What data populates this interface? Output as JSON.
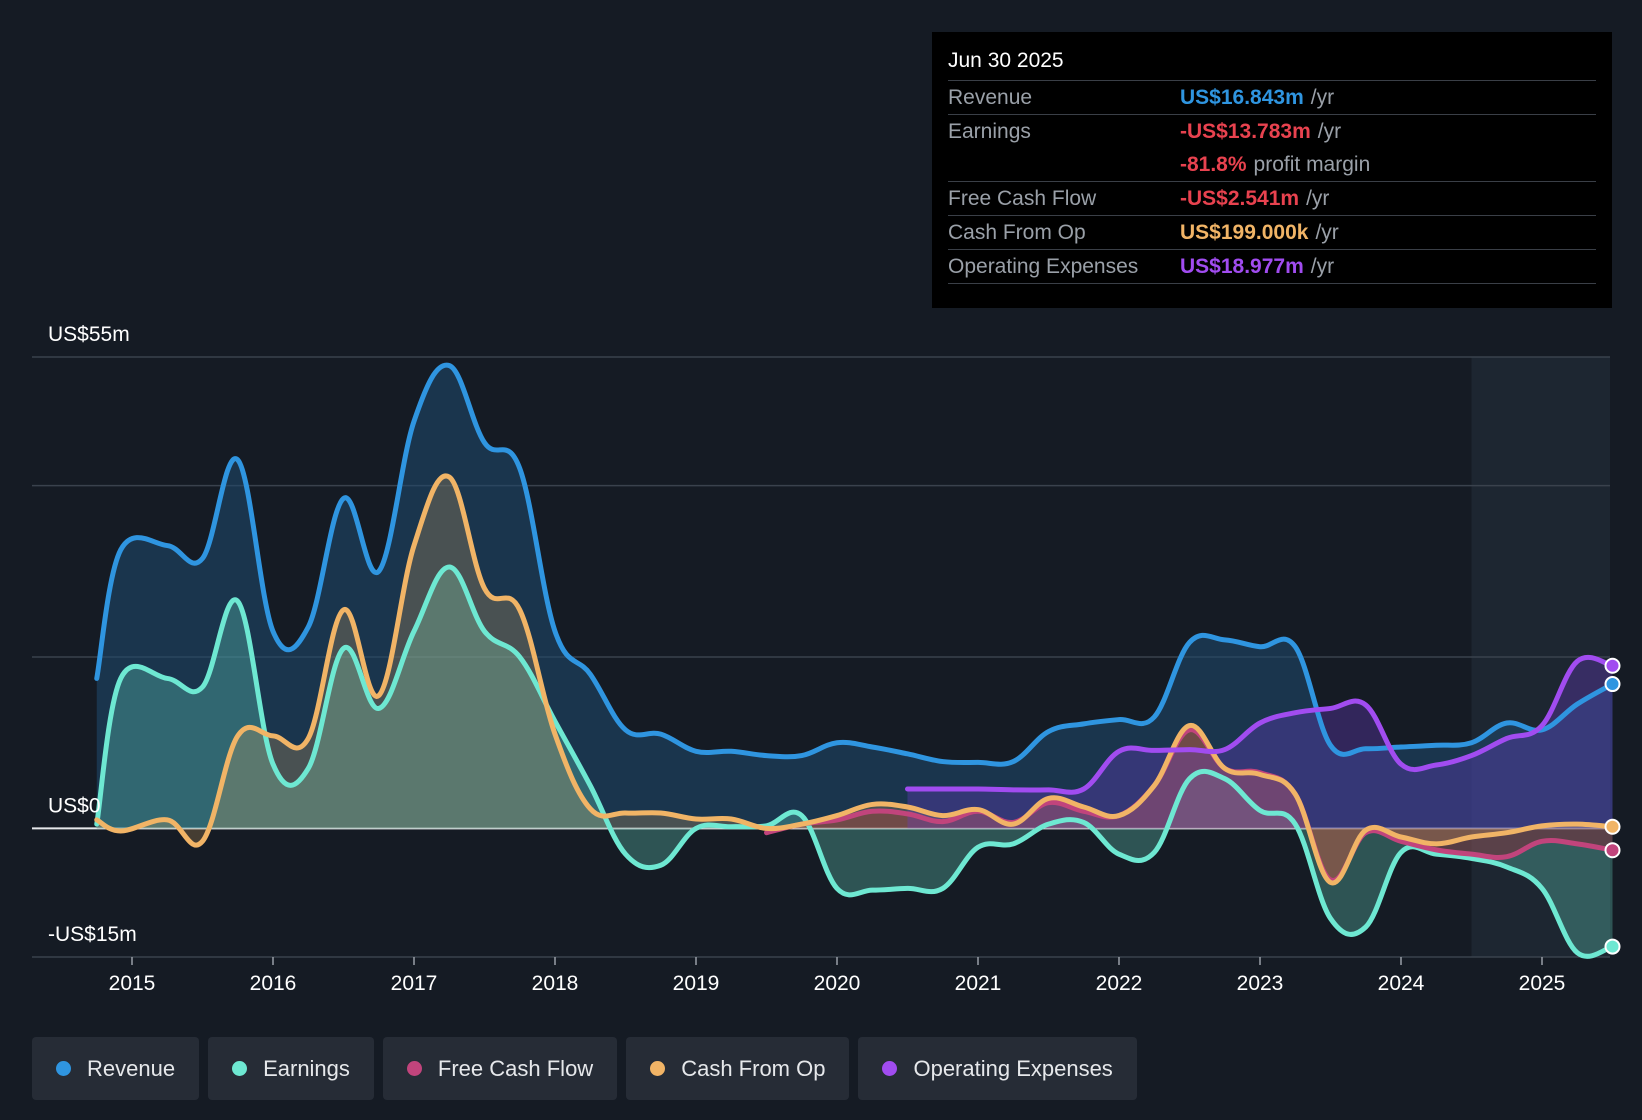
{
  "tooltip": {
    "date": "Jun 30 2025",
    "rows": [
      {
        "label": "Revenue",
        "value": "US$16.843m",
        "unit": "/yr",
        "color": "#2f95e0"
      },
      {
        "label": "Earnings",
        "value": "-US$13.783m",
        "unit": "/yr",
        "color": "#e8424f"
      },
      {
        "label": "",
        "value": "-81.8%",
        "unit": "profit margin",
        "color": "#e8424f"
      },
      {
        "label": "Free Cash Flow",
        "value": "-US$2.541m",
        "unit": "/yr",
        "color": "#e8424f"
      },
      {
        "label": "Cash From Op",
        "value": "US$199.000k",
        "unit": "/yr",
        "color": "#f1b466"
      },
      {
        "label": "Operating Expenses",
        "value": "US$18.977m",
        "unit": "/yr",
        "color": "#a14cf0"
      }
    ]
  },
  "legend": [
    {
      "label": "Revenue",
      "color": "#2f95e0"
    },
    {
      "label": "Earnings",
      "color": "#6ee8d2"
    },
    {
      "label": "Free Cash Flow",
      "color": "#c1447c"
    },
    {
      "label": "Cash From Op",
      "color": "#f1b466"
    },
    {
      "label": "Operating Expenses",
      "color": "#a14cf0"
    }
  ],
  "chart_data": {
    "type": "area",
    "y_top_label": "US$55m",
    "y_zero_label": "US$0",
    "y_bottom_label": "-US$15m",
    "ylim": [
      -15,
      55
    ],
    "xlim": [
      2014.75,
      2025.5
    ],
    "x_ticks": [
      2015,
      2016,
      2017,
      2018,
      2019,
      2020,
      2021,
      2022,
      2023,
      2024,
      2025
    ],
    "x_tick_labels": [
      "2015",
      "2016",
      "2017",
      "2018",
      "2019",
      "2020",
      "2021",
      "2022",
      "2023",
      "2024",
      "2025"
    ],
    "grid": true,
    "forecast_start": 2024.5,
    "series": [
      {
        "name": "Revenue",
        "color": "#2f95e0",
        "points": [
          [
            2014.75,
            17.5
          ],
          [
            2014.92,
            32.5
          ],
          [
            2015.25,
            33
          ],
          [
            2015.5,
            31.5
          ],
          [
            2015.75,
            43
          ],
          [
            2016.0,
            23
          ],
          [
            2016.25,
            23.5
          ],
          [
            2016.5,
            38.5
          ],
          [
            2016.75,
            30
          ],
          [
            2017.0,
            47.5
          ],
          [
            2017.25,
            54
          ],
          [
            2017.5,
            45
          ],
          [
            2017.75,
            42
          ],
          [
            2018.0,
            23
          ],
          [
            2018.25,
            18
          ],
          [
            2018.5,
            11.5
          ],
          [
            2018.75,
            11
          ],
          [
            2019.0,
            9
          ],
          [
            2019.25,
            9
          ],
          [
            2019.5,
            8.5
          ],
          [
            2019.75,
            8.5
          ],
          [
            2020.0,
            10
          ],
          [
            2020.25,
            9.5
          ],
          [
            2020.5,
            8.7
          ],
          [
            2020.75,
            7.8
          ],
          [
            2021.0,
            7.7
          ],
          [
            2021.25,
            7.8
          ],
          [
            2021.5,
            11.3
          ],
          [
            2021.75,
            12.2
          ],
          [
            2022.0,
            12.7
          ],
          [
            2022.25,
            13
          ],
          [
            2022.5,
            21.7
          ],
          [
            2022.75,
            22
          ],
          [
            2023.0,
            21.2
          ],
          [
            2023.25,
            21.2
          ],
          [
            2023.5,
            9.7
          ],
          [
            2023.75,
            9.3
          ],
          [
            2024.0,
            9.5
          ],
          [
            2024.25,
            9.7
          ],
          [
            2024.5,
            10
          ],
          [
            2024.75,
            12.3
          ],
          [
            2025.0,
            11.5
          ],
          [
            2025.25,
            14.5
          ],
          [
            2025.5,
            16.843
          ]
        ]
      },
      {
        "name": "Earnings",
        "color": "#6ee8d2",
        "points": [
          [
            2014.75,
            0.5
          ],
          [
            2014.92,
            17.5
          ],
          [
            2015.25,
            17.5
          ],
          [
            2015.5,
            16.5
          ],
          [
            2015.75,
            26.5
          ],
          [
            2016.0,
            7.5
          ],
          [
            2016.25,
            7
          ],
          [
            2016.5,
            21
          ],
          [
            2016.75,
            14
          ],
          [
            2017.0,
            23
          ],
          [
            2017.25,
            30.5
          ],
          [
            2017.5,
            23
          ],
          [
            2017.75,
            20
          ],
          [
            2018.0,
            12.5
          ],
          [
            2018.25,
            5
          ],
          [
            2018.5,
            -3
          ],
          [
            2018.75,
            -4.3
          ],
          [
            2019.0,
            0
          ],
          [
            2019.25,
            0.2
          ],
          [
            2019.5,
            0.3
          ],
          [
            2019.75,
            1.5
          ],
          [
            2020.0,
            -7
          ],
          [
            2020.25,
            -7.2
          ],
          [
            2020.5,
            -7
          ],
          [
            2020.75,
            -7
          ],
          [
            2021.0,
            -2.2
          ],
          [
            2021.25,
            -1.8
          ],
          [
            2021.5,
            0.5
          ],
          [
            2021.75,
            0.7
          ],
          [
            2022.0,
            -3
          ],
          [
            2022.25,
            -2.8
          ],
          [
            2022.5,
            5.8
          ],
          [
            2022.75,
            5.8
          ],
          [
            2023.0,
            2.1
          ],
          [
            2023.25,
            0.5
          ],
          [
            2023.5,
            -10.5
          ],
          [
            2023.75,
            -11.5
          ],
          [
            2024.0,
            -2.8
          ],
          [
            2024.25,
            -3
          ],
          [
            2024.5,
            -3.5
          ],
          [
            2024.75,
            -4.5
          ],
          [
            2025.0,
            -7
          ],
          [
            2025.25,
            -14.5
          ],
          [
            2025.5,
            -13.783
          ]
        ]
      },
      {
        "name": "Free Cash Flow",
        "color": "#c1447c",
        "points": [
          [
            2019.5,
            -0.5
          ],
          [
            2019.75,
            0.5
          ],
          [
            2020.0,
            1
          ],
          [
            2020.25,
            2
          ],
          [
            2020.5,
            1.7
          ],
          [
            2020.75,
            0.8
          ],
          [
            2021.0,
            2
          ],
          [
            2021.25,
            0.7
          ],
          [
            2021.5,
            3
          ],
          [
            2021.75,
            2
          ],
          [
            2022.0,
            1.5
          ],
          [
            2022.25,
            5
          ],
          [
            2022.5,
            11.5
          ],
          [
            2022.75,
            7
          ],
          [
            2023.0,
            6.5
          ],
          [
            2023.25,
            4
          ],
          [
            2023.5,
            -6
          ],
          [
            2023.75,
            -0.5
          ],
          [
            2024.0,
            -1.5
          ],
          [
            2024.25,
            -2.5
          ],
          [
            2024.5,
            -3
          ],
          [
            2024.75,
            -3.3
          ],
          [
            2025.0,
            -1.5
          ],
          [
            2025.25,
            -1.8
          ],
          [
            2025.5,
            -2.541
          ]
        ]
      },
      {
        "name": "Cash From Op",
        "color": "#f1b466",
        "points": [
          [
            2014.75,
            1
          ],
          [
            2014.92,
            -0.3
          ],
          [
            2015.25,
            1
          ],
          [
            2015.5,
            -1.5
          ],
          [
            2015.75,
            10.8
          ],
          [
            2016.0,
            10.8
          ],
          [
            2016.25,
            10.5
          ],
          [
            2016.5,
            25.5
          ],
          [
            2016.75,
            15.5
          ],
          [
            2017.0,
            33
          ],
          [
            2017.25,
            41
          ],
          [
            2017.5,
            28
          ],
          [
            2017.75,
            25.5
          ],
          [
            2018.0,
            11
          ],
          [
            2018.25,
            2.3
          ],
          [
            2018.5,
            1.8
          ],
          [
            2018.75,
            1.8
          ],
          [
            2019.0,
            1.1
          ],
          [
            2019.25,
            1.1
          ],
          [
            2019.5,
            0
          ],
          [
            2019.75,
            0.5
          ],
          [
            2020.0,
            1.5
          ],
          [
            2020.25,
            2.8
          ],
          [
            2020.5,
            2.5
          ],
          [
            2020.75,
            1.5
          ],
          [
            2021.0,
            2.2
          ],
          [
            2021.25,
            0.5
          ],
          [
            2021.5,
            3.5
          ],
          [
            2021.75,
            2.5
          ],
          [
            2022.0,
            1.5
          ],
          [
            2022.25,
            5
          ],
          [
            2022.5,
            12
          ],
          [
            2022.75,
            7
          ],
          [
            2023.0,
            6.3
          ],
          [
            2023.25,
            4
          ],
          [
            2023.5,
            -6.3
          ],
          [
            2023.75,
            -0.2
          ],
          [
            2024.0,
            -1
          ],
          [
            2024.25,
            -1.8
          ],
          [
            2024.5,
            -1
          ],
          [
            2024.75,
            -0.5
          ],
          [
            2025.0,
            0.3
          ],
          [
            2025.25,
            0.5
          ],
          [
            2025.5,
            0.199
          ]
        ]
      },
      {
        "name": "Operating Expenses",
        "color": "#a14cf0",
        "points": [
          [
            2020.5,
            4.6
          ],
          [
            2020.75,
            4.6
          ],
          [
            2021.0,
            4.6
          ],
          [
            2021.25,
            4.5
          ],
          [
            2021.5,
            4.5
          ],
          [
            2021.75,
            4.6
          ],
          [
            2022.0,
            9
          ],
          [
            2022.25,
            9.1
          ],
          [
            2022.5,
            9.2
          ],
          [
            2022.75,
            9.2
          ],
          [
            2023.0,
            12.3
          ],
          [
            2023.25,
            13.5
          ],
          [
            2023.5,
            14
          ],
          [
            2023.75,
            14.4
          ],
          [
            2024.0,
            7.5
          ],
          [
            2024.25,
            7.4
          ],
          [
            2024.5,
            8.5
          ],
          [
            2024.75,
            10.5
          ],
          [
            2025.0,
            12
          ],
          [
            2025.25,
            19.5
          ],
          [
            2025.5,
            18.977
          ]
        ]
      }
    ]
  }
}
